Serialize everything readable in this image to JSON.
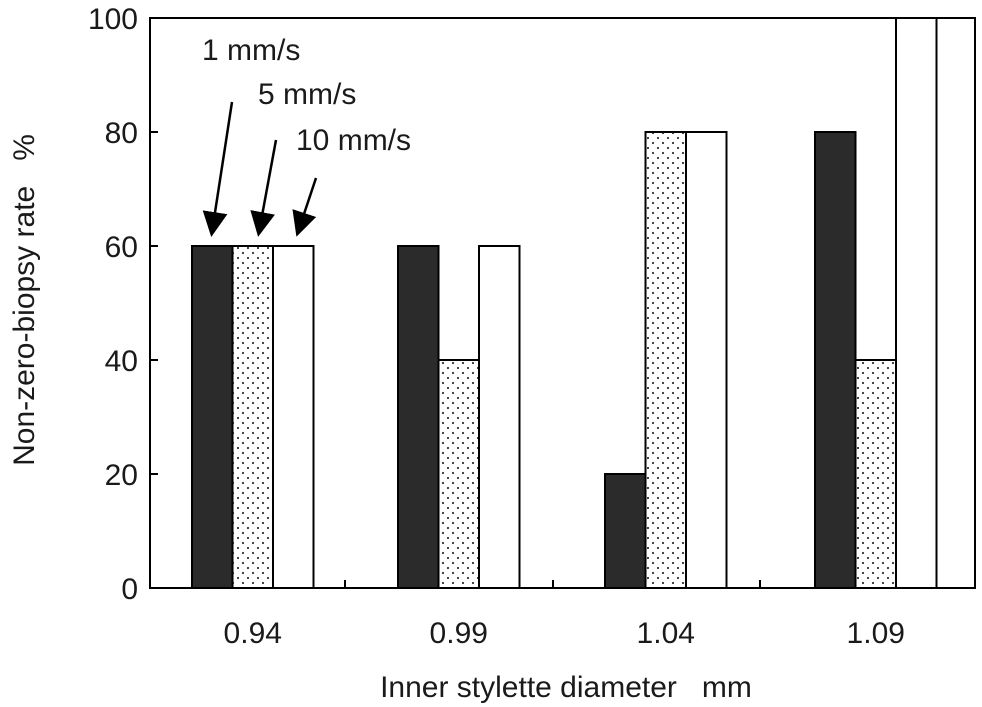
{
  "chart_data": {
    "type": "bar",
    "categories": [
      "0.94",
      "0.99",
      "1.04",
      "1.09"
    ],
    "series": [
      {
        "name": "1 mm/s",
        "values": [
          60,
          60,
          20,
          80
        ],
        "pattern": "solid"
      },
      {
        "name": "5 mm/s",
        "values": [
          60,
          40,
          80,
          40
        ],
        "pattern": "dotted"
      },
      {
        "name": "10 mm/s",
        "values": [
          60,
          60,
          80,
          100
        ],
        "pattern": "open"
      }
    ],
    "xlabel": "Inner stylette diameter   mm",
    "ylabel": "Non-zero-biopsy rate   %",
    "ylim": [
      0,
      100
    ],
    "yticks": [
      "0",
      "20",
      "40",
      "60",
      "80",
      "100"
    ],
    "grid": false,
    "legend": "arrow annotations at top-left",
    "colors": {
      "solid": "#2b2b2b",
      "open": "#ffffff",
      "dot": "#333333",
      "stroke": "#000000"
    }
  }
}
